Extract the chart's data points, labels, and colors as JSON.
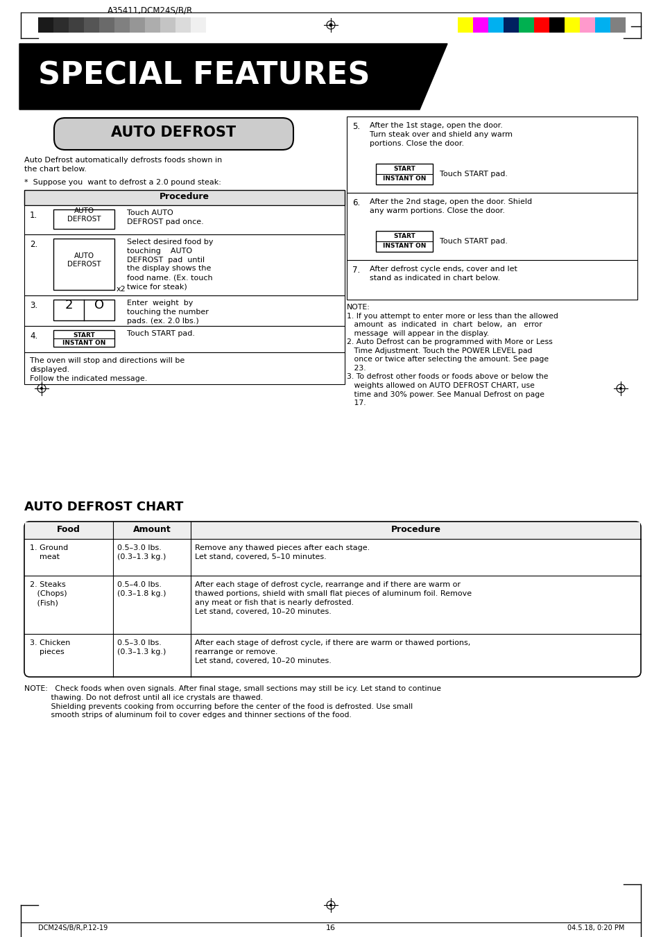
{
  "page_title_header": "A35411,DCM24S/B/R",
  "special_features_title": "SPECIAL FEATURES",
  "auto_defrost_title": "AUTO DEFROST",
  "auto_defrost_desc": "Auto Defrost automatically defrosts foods shown in\nthe chart below.",
  "suppose_text": "*  Suppose you  want to defrost a 2.0 pound steak:",
  "procedure_header": "Procedure",
  "steps_left": [
    {
      "num": "1.",
      "button": "AUTO\nDEFROST",
      "text": "Touch AUTO\nDEFROST pad once."
    },
    {
      "num": "2.",
      "button": "AUTO\nDEFROST",
      "x2": true,
      "text": "Select desired food by\ntouching    AUTO\nDEFROST  pad  until\nthe display shows the\nfood name. (Ex. touch\ntwice for steak)"
    },
    {
      "num": "3.",
      "button": "2  O",
      "text": "Enter  weight  by\ntouching the number\npads. (ex. 2.0 lbs.)"
    },
    {
      "num": "4.",
      "button": "START\nINSTANT ON",
      "text": "Touch START pad."
    }
  ],
  "bottom_left_text": "The oven will stop and directions will be\ndisplayed.\nFollow the indicated message.",
  "steps_right": [
    {
      "num": "5.",
      "text": "After the 1st stage, open the door.\nTurn steak over and shield any warm\nportions. Close the door.",
      "button": "START\nINSTANT ON",
      "button_label": "Touch START pad."
    },
    {
      "num": "6.",
      "text": "After the 2nd stage, open the door. Shield\nany warm portions. Close the door.",
      "button": "START\nINSTANT ON",
      "button_label": "Touch START pad."
    },
    {
      "num": "7.",
      "text": "After defrost cycle ends, cover and let\nstand as indicated in chart below."
    }
  ],
  "note_right": "NOTE:\n1. If you attempt to enter more or less than the allowed\n   amount  as  indicated  in  chart  below,  an   error\n   message  will appear in the display.\n2. Auto Defrost can be programmed with More or Less\n   Time Adjustment. Touch the POWER LEVEL pad\n   once or twice after selecting the amount. See page\n   23.\n3. To defrost other foods or foods above or below the\n   weights allowed on AUTO DEFROST CHART, use\n   time and 30% power. See Manual Defrost on page\n   17.",
  "chart_title": "AUTO DEFROST CHART",
  "chart_headers": [
    "Food",
    "Amount",
    "Procedure"
  ],
  "chart_rows": [
    {
      "food": "1. Ground\n    meat",
      "amount": "0.5–3.0 lbs.\n(0.3–1.3 kg.)",
      "procedure": "Remove any thawed pieces after each stage.\nLet stand, covered, 5–10 minutes."
    },
    {
      "food": "2. Steaks\n   (Chops)\n   (Fish)",
      "amount": "0.5–4.0 lbs.\n(0.3–1.8 kg.)",
      "procedure": "After each stage of defrost cycle, rearrange and if there are warm or\nthawed portions, shield with small flat pieces of aluminum foil. Remove\nany meat or fish that is nearly defrosted.\nLet stand, covered, 10–20 minutes."
    },
    {
      "food": "3. Chicken\n    pieces",
      "amount": "0.5–3.0 lbs.\n(0.3–1.3 kg.)",
      "procedure": "After each stage of defrost cycle, if there are warm or thawed portions,\nrearrange or remove.\nLet stand, covered, 10–20 minutes."
    }
  ],
  "note_bottom": "NOTE:   Check foods when oven signals. After final stage, small sections may still be icy. Let stand to continue\n           thawing. Do not defrost until all ice crystals are thawed.\n           Shielding prevents cooking from occurring before the center of the food is defrosted. Use small\n           smooth strips of aluminum foil to cover edges and thinner sections of the food.",
  "footer_left": "DCM24S/B/R,P.12-19",
  "footer_center": "16",
  "footer_right": "04.5.18, 0:20 PM",
  "bg_color": "#ffffff",
  "gray_strip_colors": [
    "#1a1a1a",
    "#2d2d2d",
    "#404040",
    "#555555",
    "#6a6a6a",
    "#808080",
    "#969696",
    "#adadad",
    "#c4c4c4",
    "#dbdbdb",
    "#f0f0f0"
  ],
  "color_strip_colors": [
    "#ffff00",
    "#ff00ff",
    "#00b0f0",
    "#002060",
    "#00b050",
    "#ff0000",
    "#000000",
    "#ffff00",
    "#ff99cc",
    "#00b0f0",
    "#808080"
  ]
}
